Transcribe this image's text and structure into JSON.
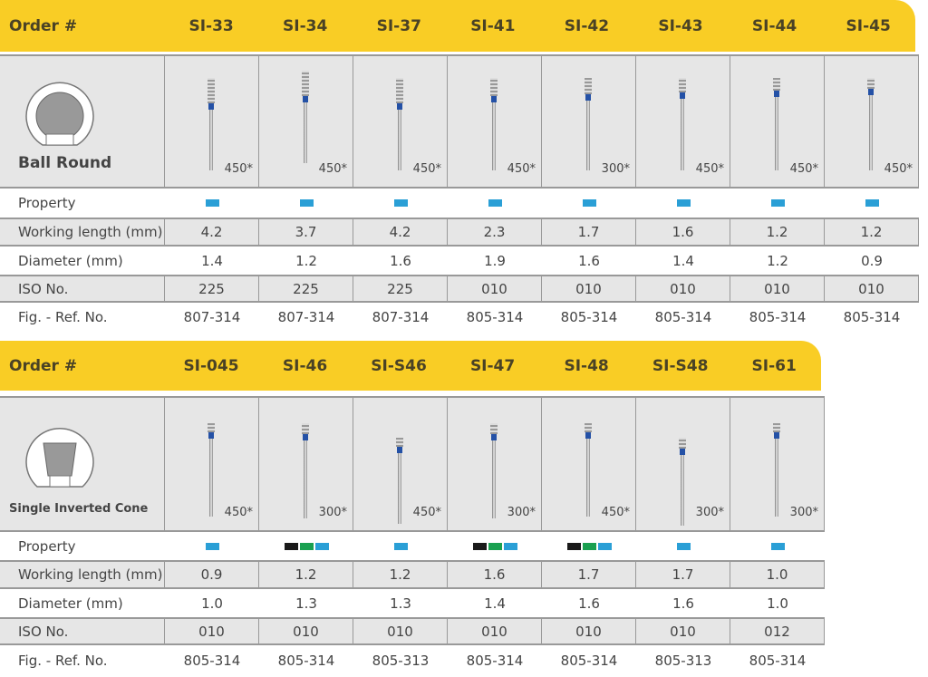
{
  "colors": {
    "header": "#f9cd25",
    "blue": "#2a9fd6",
    "green": "#1aa050",
    "black": "#1a1a1a"
  },
  "tables": [
    {
      "order_label": "Order #",
      "shape_name": "Ball Round",
      "shape_icon": "ball-round-icon",
      "row_labels": {
        "property": "Property",
        "working_length": "Working length (mm)",
        "diameter": "Diameter (mm)",
        "iso": "ISO No.",
        "ref": "Fig. - Ref. No."
      },
      "items": [
        {
          "code": "SI-33",
          "speed": "450*",
          "property": [
            "blue"
          ],
          "working_length": "4.2",
          "diameter": "1.4",
          "iso": "225",
          "ref": "807-314"
        },
        {
          "code": "SI-34",
          "speed": "450*",
          "property": [
            "blue"
          ],
          "working_length": "3.7",
          "diameter": "1.2",
          "iso": "225",
          "ref": "807-314"
        },
        {
          "code": "SI-37",
          "speed": "450*",
          "property": [
            "blue"
          ],
          "working_length": "4.2",
          "diameter": "1.6",
          "iso": "225",
          "ref": "807-314"
        },
        {
          "code": "SI-41",
          "speed": "450*",
          "property": [
            "blue"
          ],
          "working_length": "2.3",
          "diameter": "1.9",
          "iso": "010",
          "ref": "805-314"
        },
        {
          "code": "SI-42",
          "speed": "300*",
          "property": [
            "blue"
          ],
          "working_length": "1.7",
          "diameter": "1.6",
          "iso": "010",
          "ref": "805-314"
        },
        {
          "code": "SI-43",
          "speed": "450*",
          "property": [
            "blue"
          ],
          "working_length": "1.6",
          "diameter": "1.4",
          "iso": "010",
          "ref": "805-314"
        },
        {
          "code": "SI-44",
          "speed": "450*",
          "property": [
            "blue"
          ],
          "working_length": "1.2",
          "diameter": "1.2",
          "iso": "010",
          "ref": "805-314"
        },
        {
          "code": "SI-45",
          "speed": "450*",
          "property": [
            "blue"
          ],
          "working_length": "1.2",
          "diameter": "0.9",
          "iso": "010",
          "ref": "805-314"
        }
      ]
    },
    {
      "order_label": "Order #",
      "shape_name": "Single Inverted Cone",
      "shape_icon": "inverted-cone-icon",
      "row_labels": {
        "property": "Property",
        "working_length": "Working length (mm)",
        "diameter": "Diameter (mm)",
        "iso": "ISO No.",
        "ref": "Fig. - Ref. No."
      },
      "items": [
        {
          "code": "SI-045",
          "speed": "450*",
          "property": [
            "blue"
          ],
          "working_length": "0.9",
          "diameter": "1.0",
          "iso": "010",
          "ref": "805-314"
        },
        {
          "code": "SI-46",
          "speed": "300*",
          "property": [
            "black",
            "green",
            "blue"
          ],
          "working_length": "1.2",
          "diameter": "1.3",
          "iso": "010",
          "ref": "805-314"
        },
        {
          "code": "SI-S46",
          "speed": "450*",
          "property": [
            "blue"
          ],
          "working_length": "1.2",
          "diameter": "1.3",
          "iso": "010",
          "ref": "805-313"
        },
        {
          "code": "SI-47",
          "speed": "300*",
          "property": [
            "black",
            "green",
            "blue"
          ],
          "working_length": "1.6",
          "diameter": "1.4",
          "iso": "010",
          "ref": "805-314"
        },
        {
          "code": "SI-48",
          "speed": "450*",
          "property": [
            "black",
            "green",
            "blue"
          ],
          "working_length": "1.7",
          "diameter": "1.6",
          "iso": "010",
          "ref": "805-314"
        },
        {
          "code": "SI-S48",
          "speed": "300*",
          "property": [
            "blue"
          ],
          "working_length": "1.7",
          "diameter": "1.6",
          "iso": "010",
          "ref": "805-313"
        },
        {
          "code": "SI-61",
          "speed": "300*",
          "property": [
            "blue"
          ],
          "working_length": "1.0",
          "diameter": "1.0",
          "iso": "012",
          "ref": "805-314"
        }
      ]
    }
  ]
}
